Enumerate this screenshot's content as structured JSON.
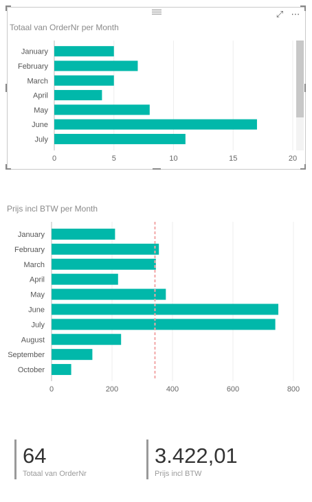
{
  "chart1": {
    "title": "Totaal van OrderNr per Month",
    "icons": [
      "focus-mode-icon",
      "more-options-icon"
    ],
    "more_glyph": "⋯",
    "focus_glyph": "⤢"
  },
  "chart2": {
    "title": "Prijs incl BTW per Month"
  },
  "cards": [
    {
      "value": "64",
      "label": "Totaal van OrderNr"
    },
    {
      "value": "3.422,01",
      "label": "Prijs incl BTW"
    }
  ],
  "colors": {
    "bar": "#01B8AA",
    "reference_line": "#F2A5A5",
    "gridline": "#eeeeee"
  },
  "chart_data": [
    {
      "type": "bar",
      "orientation": "horizontal",
      "title": "Totaal van OrderNr per Month",
      "categories": [
        "January",
        "February",
        "March",
        "April",
        "May",
        "June",
        "July"
      ],
      "values": [
        5,
        7,
        5,
        4,
        8,
        17,
        11
      ],
      "xticks": [
        0,
        5,
        10,
        15,
        20
      ],
      "xlim": [
        0,
        20
      ],
      "grid": true
    },
    {
      "type": "bar",
      "orientation": "horizontal",
      "title": "Prijs incl BTW per Month",
      "categories": [
        "January",
        "February",
        "March",
        "April",
        "May",
        "June",
        "July",
        "August",
        "September",
        "October"
      ],
      "values": [
        210,
        355,
        345,
        220,
        378,
        750,
        740,
        230,
        135,
        65
      ],
      "xticks": [
        0,
        200,
        400,
        600,
        800
      ],
      "xlim": [
        0,
        800
      ],
      "reference_line": 342,
      "grid": true
    }
  ]
}
